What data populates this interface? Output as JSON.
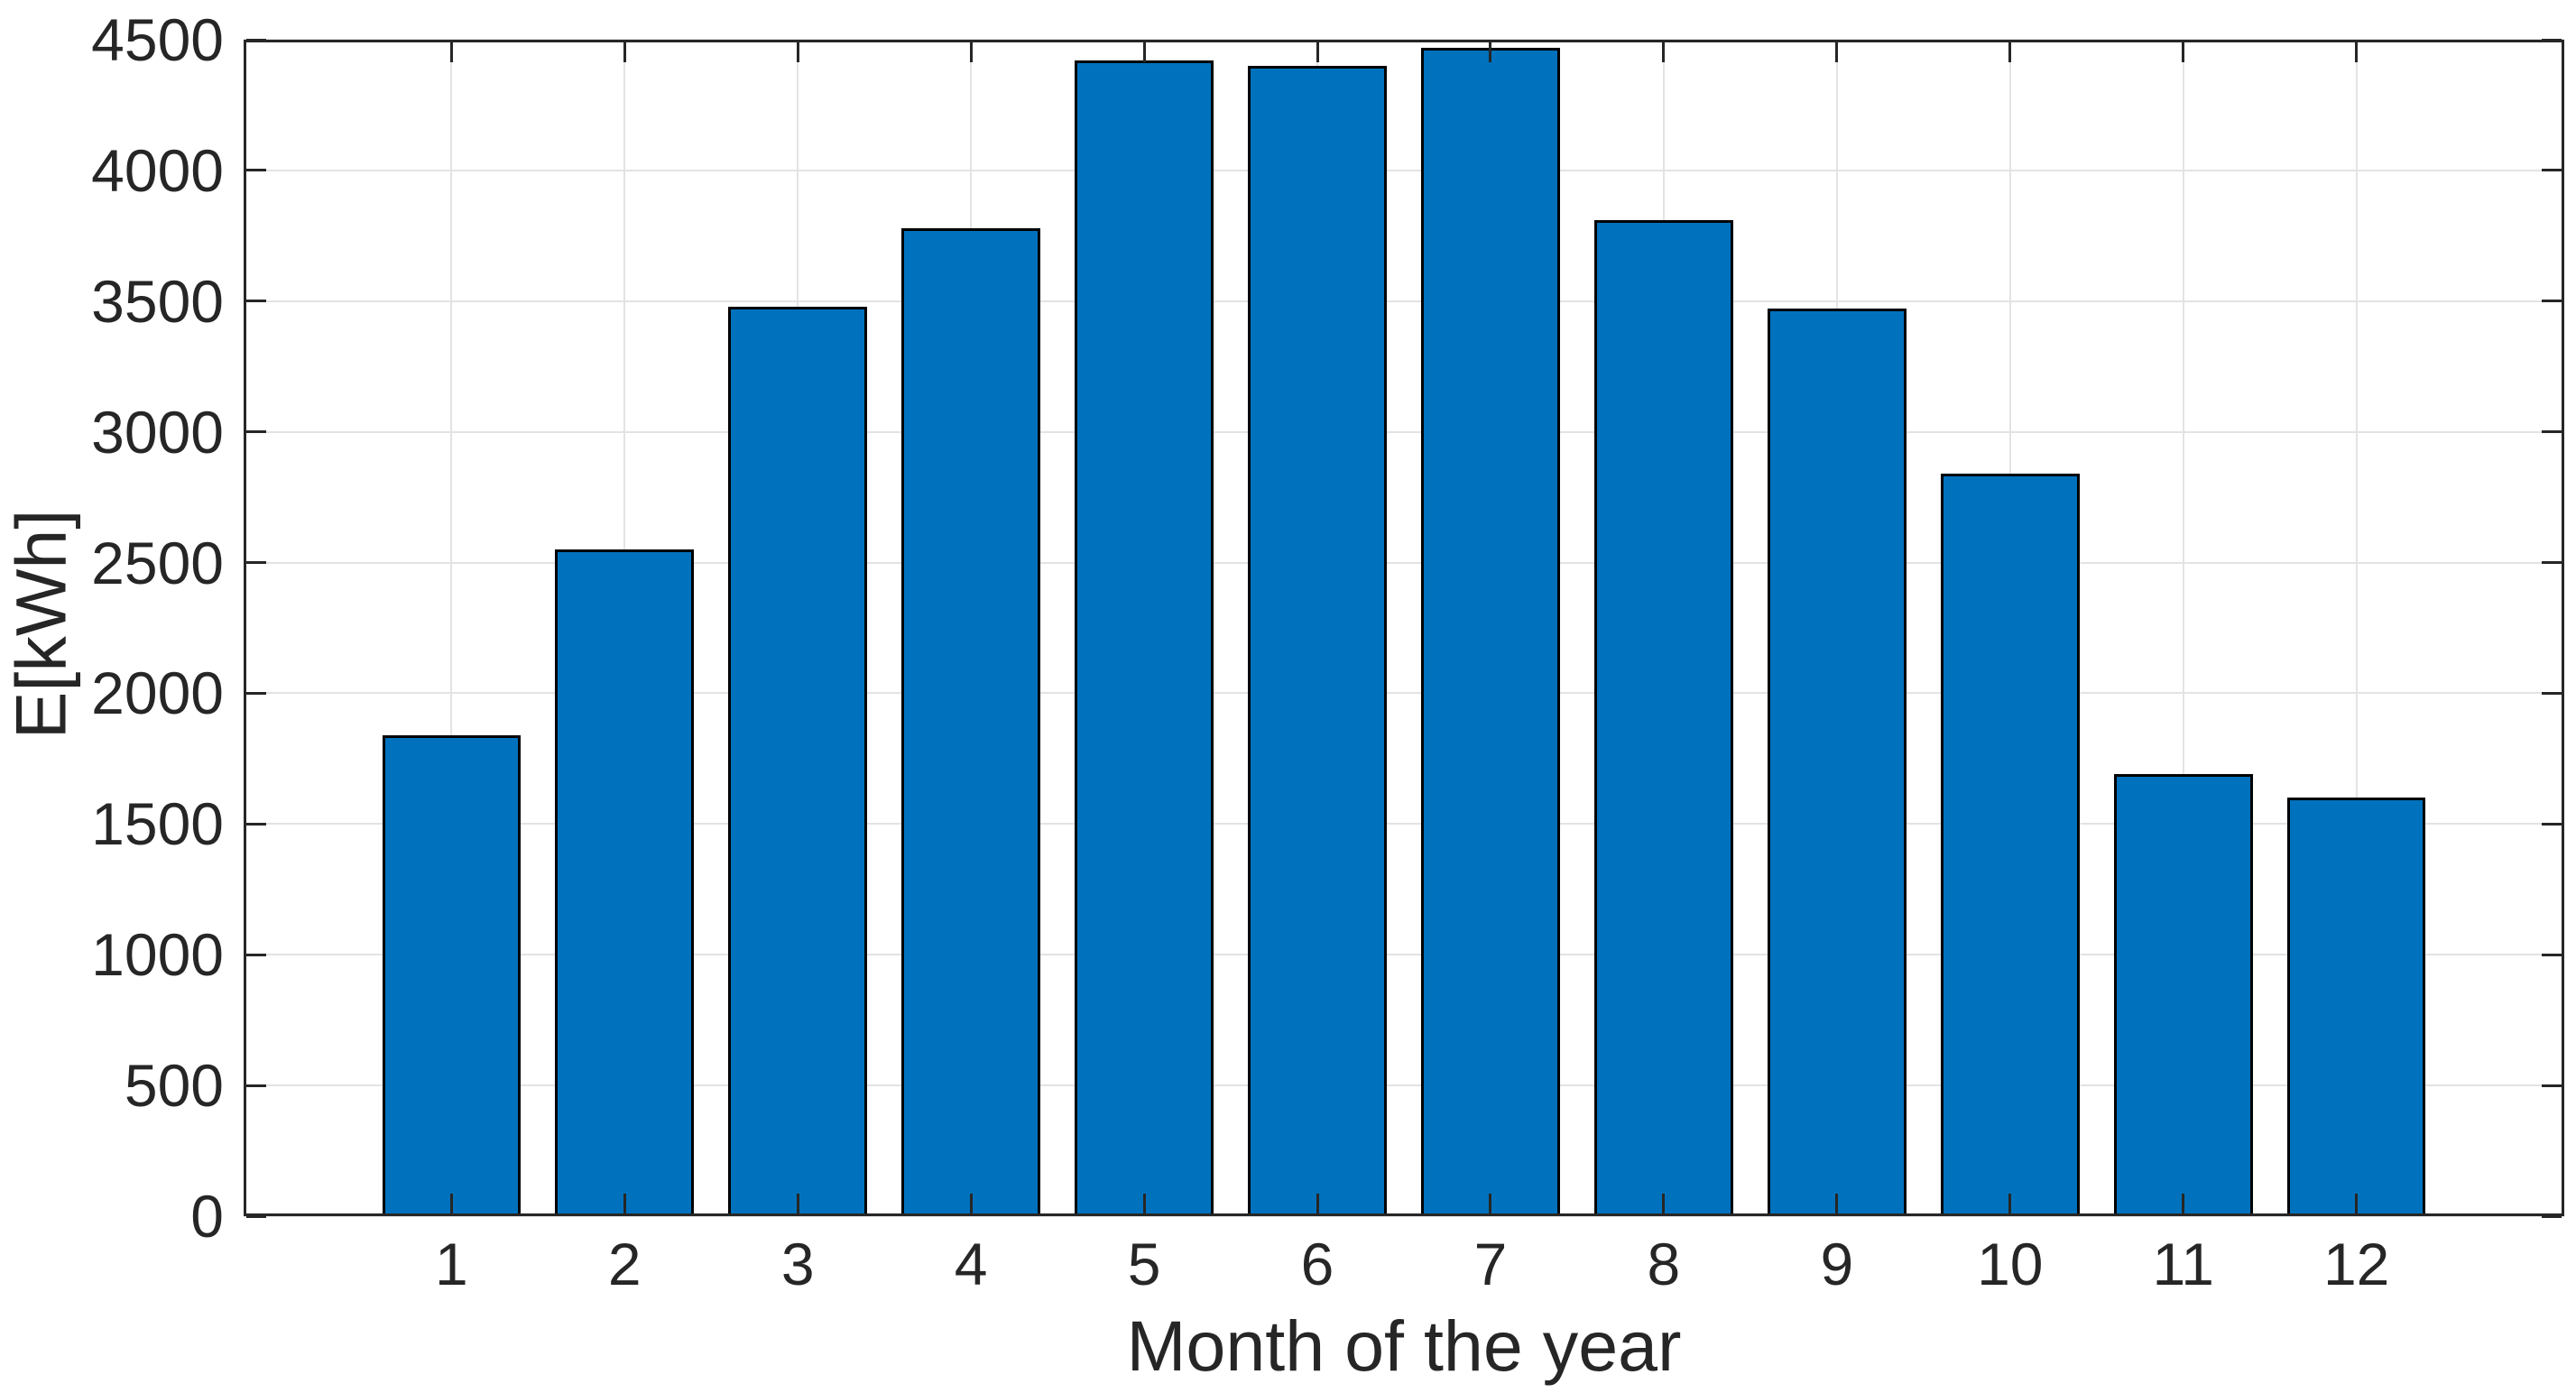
{
  "chart_data": {
    "type": "bar",
    "xlabel": "Month of the year",
    "ylabel": "E[kWh]",
    "categories": [
      "1",
      "2",
      "3",
      "4",
      "5",
      "6",
      "7",
      "8",
      "9",
      "10",
      "11",
      "12"
    ],
    "values": [
      1840,
      2550,
      3480,
      3780,
      4420,
      4400,
      4470,
      3810,
      3470,
      2840,
      1690,
      1600
    ],
    "ylim": [
      0,
      4500
    ],
    "yticks": [
      0,
      500,
      1000,
      1500,
      2000,
      2500,
      3000,
      3500,
      4000,
      4500
    ],
    "grid": true,
    "legend_position": "none",
    "bar_color": "#0072BD",
    "bar_edge_color": "#000000",
    "axis_color": "#262626",
    "grid_color": "#E3E3E3",
    "background": "#FFFFFF"
  }
}
